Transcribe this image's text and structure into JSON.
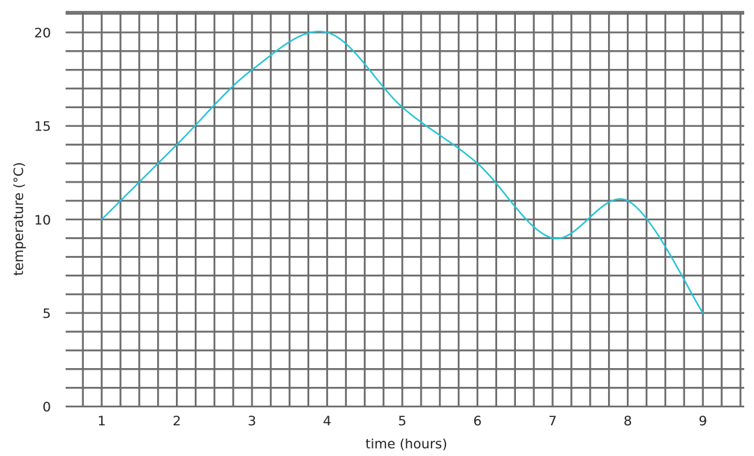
{
  "chart_data": {
    "type": "line",
    "title": "",
    "xlabel": "time (hours)",
    "ylabel": "temperature (°C)",
    "xlim": [
      0.52,
      9.55
    ],
    "ylim": [
      0,
      21.1
    ],
    "grid": true,
    "x_ticks": [
      1,
      2,
      3,
      4,
      5,
      6,
      7,
      8,
      9
    ],
    "y_ticks": [
      0,
      5,
      10,
      15,
      20
    ],
    "colors": {
      "line": "#22c4d8",
      "grid": "#6b6b6b"
    },
    "series": [
      {
        "x": [
          1,
          2,
          3,
          4,
          5,
          6,
          7,
          8,
          9
        ],
        "y": [
          10,
          14,
          18,
          20,
          16,
          13,
          9,
          11,
          5
        ]
      }
    ]
  }
}
